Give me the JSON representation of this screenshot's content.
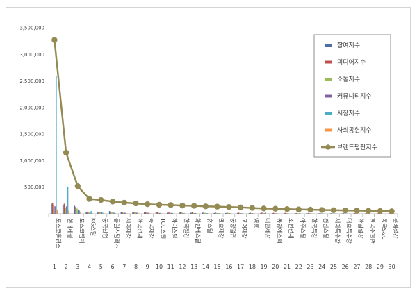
{
  "chart_data": {
    "type": "bar",
    "title": "",
    "xlabel": "",
    "ylabel": "",
    "ylim": [
      0,
      3500000
    ],
    "yticks": [
      "-",
      "500,000",
      "1,000,000",
      "1,500,000",
      "2,000,000",
      "2,500,000",
      "3,000,000",
      "3,500,000"
    ],
    "ytick_values": [
      0,
      500000,
      1000000,
      1500000,
      2000000,
      2500000,
      3000000,
      3500000
    ],
    "grid": false,
    "legend_position": "top-right",
    "categories": [
      "포스코홀딩스",
      "현대제철",
      "포스코엠텍",
      "KG스틸",
      "동국산업",
      "동일스틸럭스",
      "세아제강",
      "한국선재",
      "동국제강",
      "TCC스틸",
      "하이스틸",
      "한국철강",
      "화인베스틸",
      "휴스틸",
      "만호제강",
      "동양철관",
      "고려제강",
      "영흥",
      "대한제강",
      "동양에스텍",
      "조선선재",
      "아주스틸",
      "한국특강",
      "경남스틸",
      "세아특수강",
      "대호특수강",
      "한일철강",
      "한국주철관",
      "동국S&C",
      "문배철강"
    ],
    "rank_labels": [
      "1",
      "2",
      "3",
      "4",
      "5",
      "6",
      "7",
      "8",
      "9",
      "10",
      "11",
      "12",
      "13",
      "14",
      "15",
      "16",
      "17",
      "18",
      "19",
      "20",
      "21",
      "22",
      "23",
      "24",
      "25",
      "26",
      "27",
      "28",
      "29",
      "30"
    ],
    "series": [
      {
        "name": "참여지수",
        "type": "bar",
        "color": "#4a6fa5",
        "values": [
          190000,
          160000,
          150000,
          30000,
          40000,
          50000,
          30000,
          40000,
          30000,
          25000,
          20000,
          25000,
          20000,
          20000,
          15000,
          15000,
          15000,
          12000,
          15000,
          12000,
          10000,
          10000,
          8000,
          8000,
          8000,
          7000,
          6000,
          6000,
          5000,
          5000
        ]
      },
      {
        "name": "미디어지수",
        "type": "bar",
        "color": "#c0504d",
        "values": [
          200000,
          190000,
          130000,
          40000,
          35000,
          40000,
          35000,
          35000,
          35000,
          30000,
          30000,
          30000,
          28000,
          25000,
          25000,
          25000,
          22000,
          20000,
          22000,
          18000,
          18000,
          15000,
          15000,
          15000,
          12000,
          12000,
          12000,
          10000,
          10000,
          10000
        ]
      },
      {
        "name": "소통지수",
        "type": "bar",
        "color": "#9bbb59",
        "values": [
          160000,
          120000,
          100000,
          30000,
          30000,
          35000,
          20000,
          25000,
          30000,
          20000,
          20000,
          25000,
          18000,
          18000,
          15000,
          15000,
          15000,
          12000,
          18000,
          12000,
          12000,
          10000,
          10000,
          10000,
          8000,
          8000,
          8000,
          8000,
          6000,
          6000
        ]
      },
      {
        "name": "커뮤니티지수",
        "type": "bar",
        "color": "#8064a2",
        "values": [
          140000,
          140000,
          80000,
          20000,
          30000,
          35000,
          20000,
          20000,
          20000,
          15000,
          15000,
          15000,
          12000,
          12000,
          12000,
          12000,
          10000,
          10000,
          10000,
          8000,
          8000,
          8000,
          8000,
          6000,
          6000,
          6000,
          5000,
          5000,
          5000,
          5000
        ]
      },
      {
        "name": "시장지수",
        "type": "bar",
        "color": "#4bacc6",
        "values": [
          2600000,
          500000,
          60000,
          50000,
          20000,
          20000,
          20000,
          25000,
          15000,
          15000,
          15000,
          15000,
          15000,
          12000,
          12000,
          10000,
          10000,
          8000,
          35000,
          10000,
          6000,
          6000,
          6000,
          5000,
          5000,
          5000,
          4000,
          4000,
          4000,
          4000
        ]
      },
      {
        "name": "사회공헌지수",
        "type": "bar",
        "color": "#f79646",
        "values": [
          80000,
          60000,
          30000,
          10000,
          10000,
          10000,
          8000,
          8000,
          8000,
          6000,
          6000,
          6000,
          5000,
          5000,
          5000,
          5000,
          4000,
          4000,
          4000,
          4000,
          3000,
          3000,
          3000,
          3000,
          3000,
          3000,
          2000,
          2000,
          2000,
          2000
        ]
      },
      {
        "name": "브랜드평판지수",
        "type": "line",
        "color": "#948a54",
        "values": [
          3270000,
          1150000,
          520000,
          280000,
          260000,
          230000,
          210000,
          195000,
          180000,
          170000,
          165000,
          155000,
          150000,
          140000,
          135000,
          128000,
          120000,
          110000,
          100000,
          95000,
          88000,
          82000,
          78000,
          72000,
          68000,
          64000,
          60000,
          56000,
          52000,
          48000
        ]
      }
    ]
  }
}
